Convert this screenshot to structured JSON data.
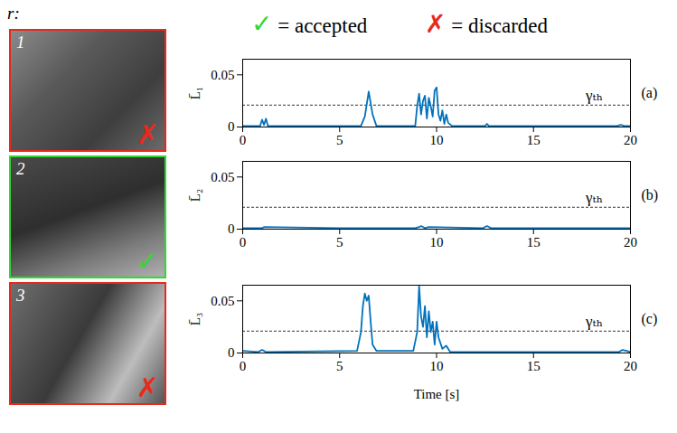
{
  "header": {
    "text": "r:"
  },
  "status_key": [
    {
      "symbol": "✓",
      "label": "= accepted",
      "color": "#33d633"
    },
    {
      "symbol": "✗",
      "label": "= discarded",
      "color": "#e8291c"
    }
  ],
  "chart_data": [
    {
      "type": "line",
      "panel": "(a)",
      "patch": {
        "label": "1",
        "mark": "✗"
      },
      "ylabel": "L̄₁",
      "xlim": [
        0,
        20
      ],
      "xticks": [
        0,
        5,
        10,
        15,
        20
      ],
      "ylim": [
        0,
        0.065
      ],
      "yticks": [
        0,
        0.05
      ],
      "color": "#0072bd",
      "threshold": {
        "value": 0.021,
        "label": "γₜₕ"
      },
      "x": [
        0,
        0.9,
        1.0,
        1.1,
        1.2,
        1.3,
        1.4,
        6.1,
        6.3,
        6.5,
        6.7,
        6.9,
        8.9,
        9.0,
        9.1,
        9.2,
        9.3,
        9.4,
        9.5,
        9.6,
        9.7,
        9.8,
        9.9,
        10.0,
        10.1,
        10.2,
        10.3,
        10.4,
        10.5,
        10.6,
        10.8,
        12.5,
        12.6,
        12.7,
        19.3,
        19.5,
        19.7,
        20
      ],
      "values": [
        0.001,
        0.001,
        0.007,
        0.002,
        0.008,
        0.001,
        0.001,
        0.001,
        0.01,
        0.034,
        0.012,
        0.001,
        0.001,
        0.02,
        0.032,
        0.012,
        0.025,
        0.03,
        0.008,
        0.028,
        0.02,
        0.01,
        0.035,
        0.038,
        0.012,
        0.006,
        0.016,
        0.003,
        0.012,
        0.004,
        0.001,
        0.001,
        0.003,
        0.001,
        0.001,
        0.002,
        0.001,
        0.001
      ]
    },
    {
      "type": "line",
      "panel": "(b)",
      "patch": {
        "label": "2",
        "mark": "✓"
      },
      "ylabel": "L̄₂",
      "xlim": [
        0,
        20
      ],
      "xticks": [
        0,
        5,
        10,
        15,
        20
      ],
      "ylim": [
        0,
        0.065
      ],
      "yticks": [
        0,
        0.05
      ],
      "color": "#0072bd",
      "threshold": {
        "value": 0.021,
        "label": "γₜₕ"
      },
      "x": [
        0,
        1.0,
        1.1,
        5,
        8.9,
        9.1,
        9.2,
        9.4,
        9.6,
        12.4,
        12.6,
        12.8,
        19.5,
        20
      ],
      "values": [
        0.001,
        0.001,
        0.002,
        0.001,
        0.001,
        0.002,
        0.003,
        0.001,
        0.002,
        0.001,
        0.003,
        0.001,
        0.001,
        0.001
      ]
    },
    {
      "type": "line",
      "panel": "(c)",
      "patch": {
        "label": "3",
        "mark": "✗"
      },
      "ylabel": "L̄₃",
      "xlabel": "Time [s]",
      "xlim": [
        0,
        20
      ],
      "xticks": [
        0,
        5,
        10,
        15,
        20
      ],
      "ylim": [
        0,
        0.065
      ],
      "yticks": [
        0,
        0.05
      ],
      "color": "#0072bd",
      "threshold": {
        "value": 0.021,
        "label": "γₜₕ"
      },
      "x": [
        0,
        0.8,
        1.0,
        1.2,
        5.9,
        6.1,
        6.2,
        6.3,
        6.4,
        6.5,
        6.6,
        6.7,
        6.9,
        8.8,
        9.0,
        9.1,
        9.2,
        9.3,
        9.4,
        9.5,
        9.6,
        9.7,
        9.8,
        9.9,
        10.0,
        10.1,
        10.3,
        10.5,
        10.7,
        19.4,
        19.6,
        20
      ],
      "values": [
        0.002,
        0.001,
        0.003,
        0.001,
        0.002,
        0.02,
        0.045,
        0.057,
        0.05,
        0.055,
        0.03,
        0.008,
        0.002,
        0.002,
        0.02,
        0.064,
        0.035,
        0.025,
        0.045,
        0.015,
        0.04,
        0.02,
        0.03,
        0.008,
        0.03,
        0.015,
        0.004,
        0.007,
        0.001,
        0.001,
        0.003,
        0.001
      ]
    }
  ]
}
